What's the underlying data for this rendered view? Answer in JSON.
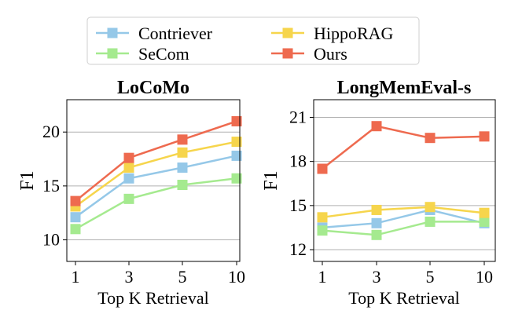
{
  "legend": {
    "entries": [
      {
        "name": "Contriever",
        "color": "#95c8e8"
      },
      {
        "name": "SeCom",
        "color": "#a5ea8f"
      },
      {
        "name": "HippoRAG",
        "color": "#f6d54c"
      },
      {
        "name": "Ours",
        "color": "#ee6a4f"
      }
    ]
  },
  "chart_data": [
    {
      "type": "line",
      "title": "LoCoMo",
      "xlabel": "Top K Retrieval",
      "ylabel": "F1",
      "categories": [
        "1",
        "3",
        "5",
        "10"
      ],
      "ylim": [
        8,
        23
      ],
      "yticks": [
        10,
        15,
        20
      ],
      "grid": "horizontal",
      "series": [
        {
          "name": "Contriever",
          "color": "#95c8e8",
          "values": [
            12.1,
            15.7,
            16.7,
            17.8
          ]
        },
        {
          "name": "SeCom",
          "color": "#a5ea8f",
          "values": [
            11.0,
            13.8,
            15.1,
            15.7
          ]
        },
        {
          "name": "HippoRAG",
          "color": "#f6d54c",
          "values": [
            13.1,
            16.7,
            18.1,
            19.1
          ]
        },
        {
          "name": "Ours",
          "color": "#ee6a4f",
          "values": [
            13.6,
            17.6,
            19.3,
            21.0
          ]
        }
      ]
    },
    {
      "type": "line",
      "title": "LongMemEval-s",
      "xlabel": "Top K Retrieval",
      "ylabel": "F1",
      "categories": [
        "1",
        "3",
        "5",
        "10"
      ],
      "ylim": [
        11.2,
        22.2
      ],
      "yticks": [
        12,
        15,
        18,
        21
      ],
      "grid": "horizontal",
      "series": [
        {
          "name": "Contriever",
          "color": "#95c8e8",
          "values": [
            13.5,
            13.8,
            14.7,
            13.8
          ]
        },
        {
          "name": "SeCom",
          "color": "#a5ea8f",
          "values": [
            13.3,
            13.0,
            13.9,
            13.9
          ]
        },
        {
          "name": "HippoRAG",
          "color": "#f6d54c",
          "values": [
            14.2,
            14.7,
            14.9,
            14.5
          ]
        },
        {
          "name": "Ours",
          "color": "#ee6a4f",
          "values": [
            17.5,
            20.4,
            19.6,
            19.7
          ]
        }
      ]
    }
  ]
}
